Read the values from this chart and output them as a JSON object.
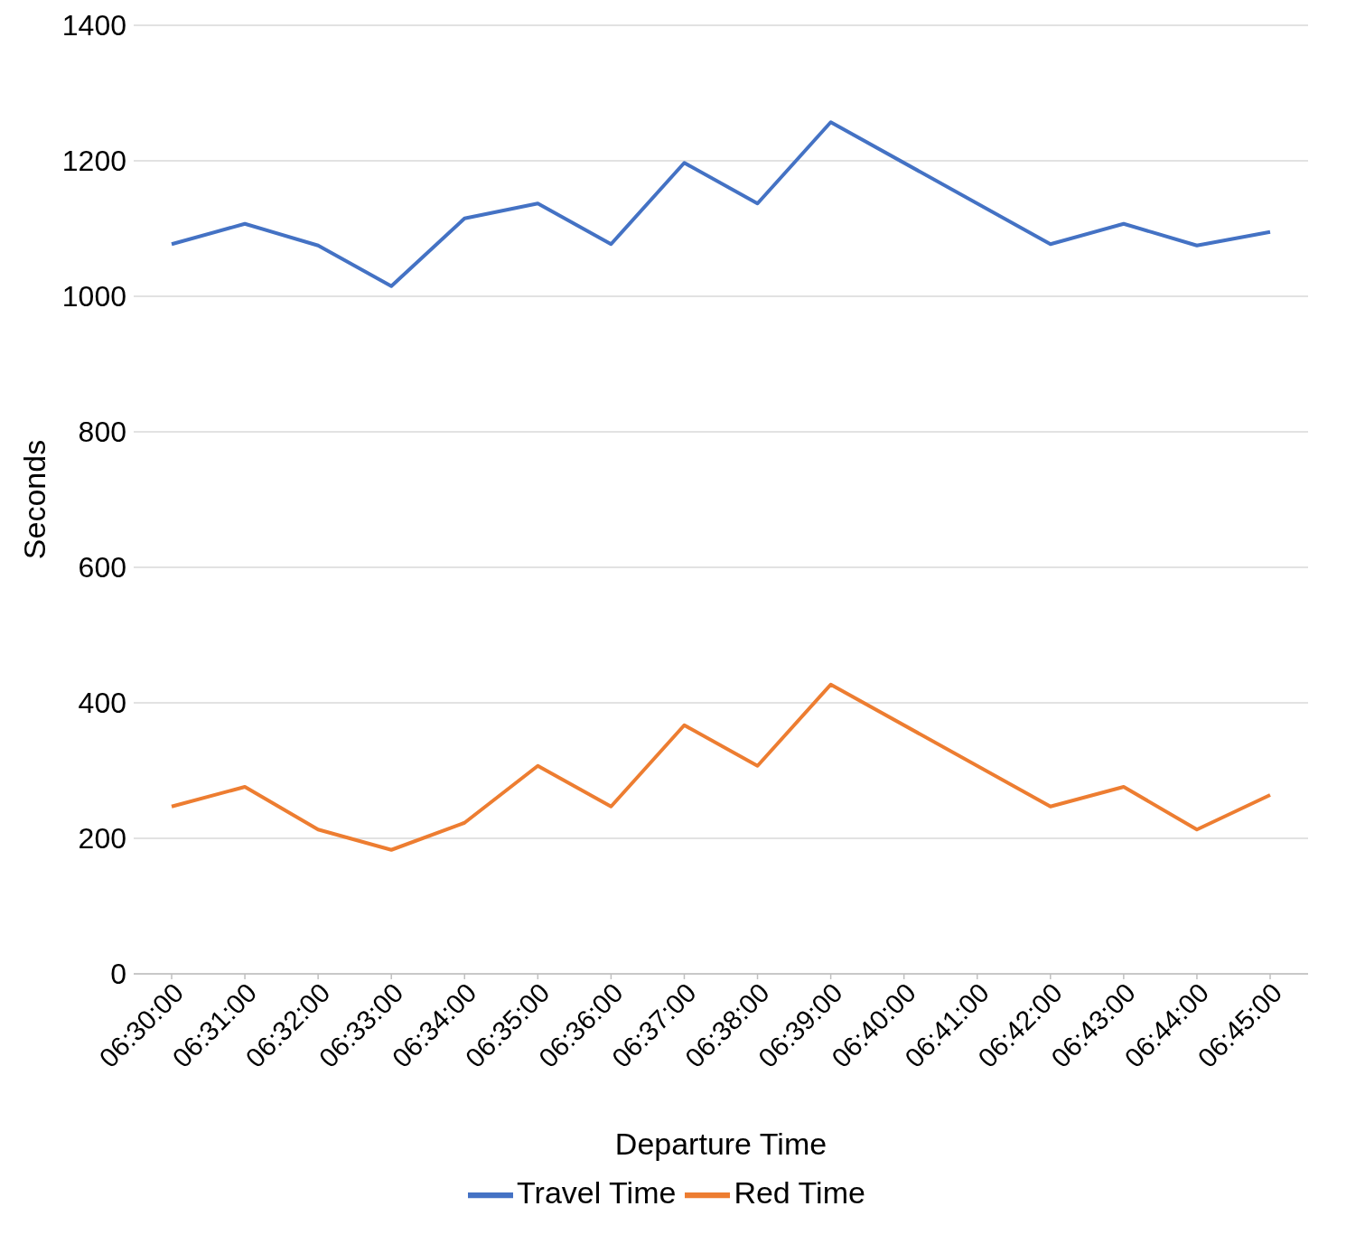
{
  "chart_data": {
    "type": "line",
    "xlabel": "Departure Time",
    "ylabel": "Seconds",
    "categories": [
      "06:30:00",
      "06:31:00",
      "06:32:00",
      "06:33:00",
      "06:34:00",
      "06:35:00",
      "06:36:00",
      "06:37:00",
      "06:38:00",
      "06:39:00",
      "06:40:00",
      "06:41:00",
      "06:42:00",
      "06:43:00",
      "06:44:00",
      "06:45:00"
    ],
    "series": [
      {
        "name": "Travel Time",
        "color": "#4472c4",
        "values": [
          1077,
          1107,
          1075,
          1015,
          1115,
          1137,
          1077,
          1197,
          1137,
          1257,
          null,
          null,
          1077,
          1107,
          1075,
          1095
        ]
      },
      {
        "name": "Red Time",
        "color": "#ed7d31",
        "values": [
          247,
          276,
          213,
          183,
          223,
          307,
          247,
          367,
          307,
          427,
          null,
          null,
          247,
          276,
          213,
          264
        ]
      }
    ],
    "ylim": [
      0,
      1400
    ],
    "yticks": [
      0,
      200,
      400,
      600,
      800,
      1000,
      1200,
      1400
    ],
    "grid": "y",
    "legend": "bottom",
    "marker": "none",
    "line_style": "solid"
  }
}
